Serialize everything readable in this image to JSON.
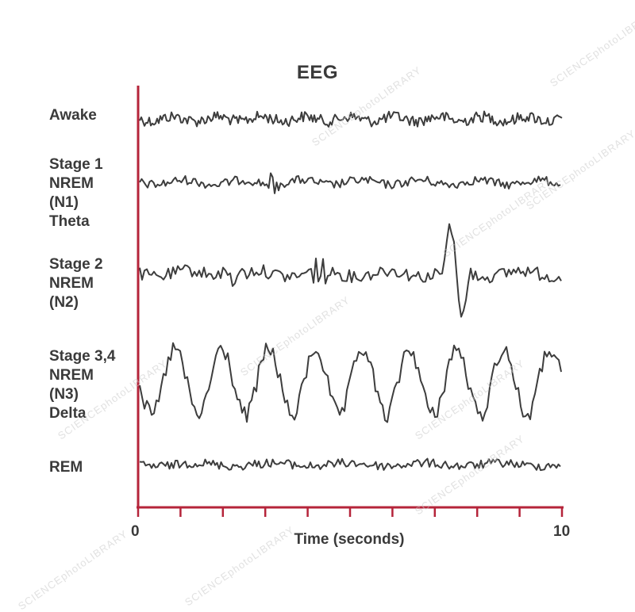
{
  "title": "EEG",
  "rows": [
    {
      "lines": [
        "Awake"
      ],
      "style": "alpha"
    },
    {
      "lines": [
        "Stage 1",
        "NREM",
        "(N1)",
        "Theta"
      ],
      "style": "theta"
    },
    {
      "lines": [
        "Stage 2",
        "NREM",
        "(N2)"
      ],
      "style": "stage2"
    },
    {
      "lines": [
        "Stage 3,4",
        "NREM",
        "(N3)",
        "Delta"
      ],
      "style": "delta"
    },
    {
      "lines": [
        "REM"
      ],
      "style": "rem"
    }
  ],
  "x_axis": {
    "title": "Time (seconds)",
    "start_label": "0",
    "end_label": "10",
    "range": [
      0,
      10
    ]
  },
  "colors": {
    "axis": "#b5243a",
    "trace": "#3d3d3d",
    "text": "#3a3a3a"
  },
  "watermark": "SCIENCEphotoLIBRARY"
}
